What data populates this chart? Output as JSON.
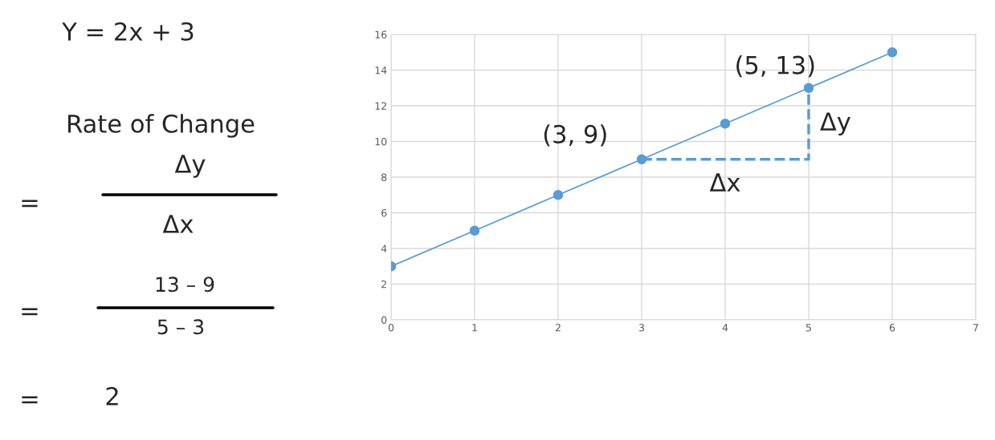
{
  "chart_data": {
    "type": "line",
    "xlim": [
      0,
      7
    ],
    "xticks": [
      0,
      1,
      2,
      3,
      4,
      5,
      6,
      7
    ],
    "ylim": [
      0,
      16
    ],
    "yticks": [
      0,
      2,
      4,
      6,
      8,
      10,
      12,
      14,
      16
    ],
    "grid": true,
    "series": [
      {
        "x": [
          0,
          1,
          2,
          3,
          4,
          5,
          6
        ],
        "values": [
          3,
          5,
          7,
          9,
          11,
          13,
          15
        ],
        "color": "#5b9bd5",
        "marker": "circle",
        "line_style": "solid"
      },
      {
        "x": [
          3,
          5,
          5
        ],
        "values": [
          9,
          9,
          13
        ],
        "color": "#5b9bd5",
        "marker": "none",
        "line_style": "dashed"
      }
    ],
    "annotations": [
      {
        "text": "(3, 9)",
        "x": 3,
        "y": 9
      },
      {
        "text": "(5, 13)",
        "x": 5,
        "y": 13
      },
      {
        "text": "Δx",
        "x": 4,
        "y": 9
      },
      {
        "text": "Δy",
        "x": 5,
        "y": 11
      },
      "Y = 2x + 3",
      "Rate of Change",
      "=",
      "Δy",
      "Δx",
      "=",
      "13 – 9",
      "5 – 3",
      "=",
      "2"
    ]
  }
}
